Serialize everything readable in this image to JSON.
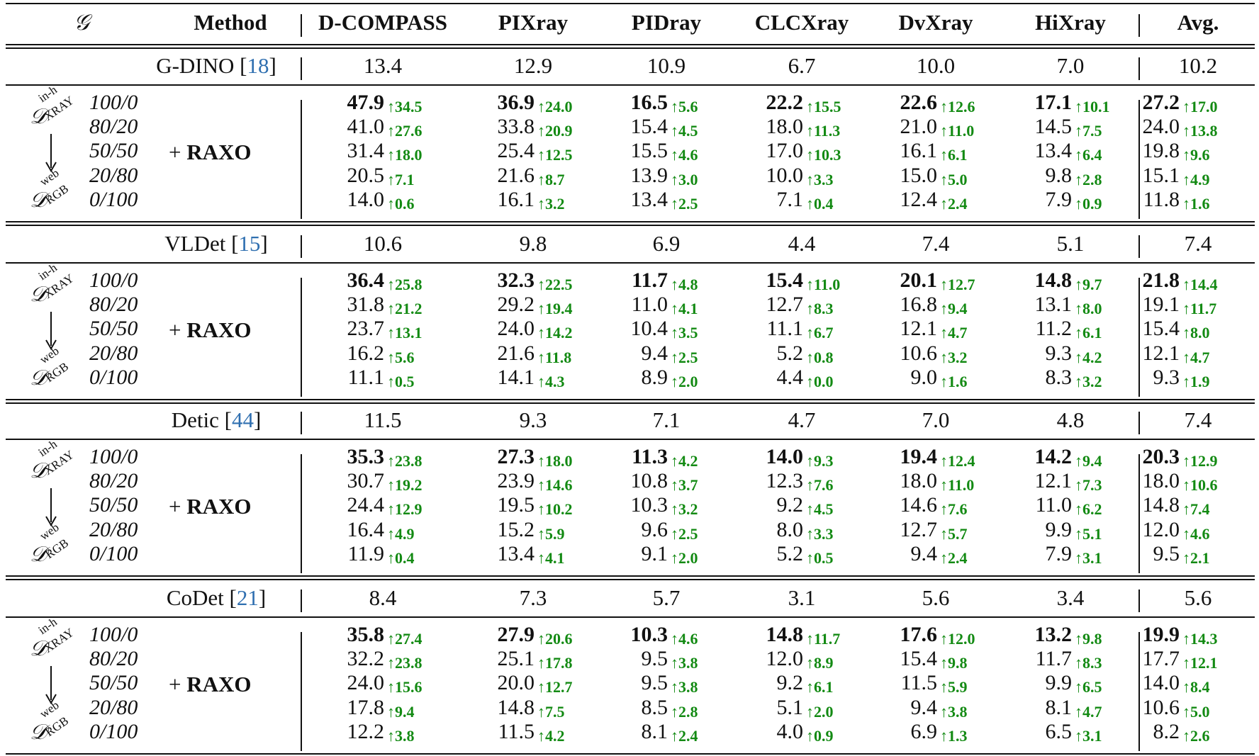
{
  "header": {
    "g_symbol": "𝒢",
    "method": "Method",
    "columns": [
      "D-COMPASS",
      "PIXray",
      "PIDray",
      "CLCXray",
      "DvXray",
      "HiXray"
    ],
    "avg": "Avg."
  },
  "domain_labels": {
    "source_symbol": "𝒟",
    "source_sup": "in-h",
    "source_sub": "XRAY",
    "target_symbol": "𝒟",
    "target_sup": "web",
    "target_sub": "RGB"
  },
  "blocks": [
    {
      "baseline": {
        "name": "G-DINO [",
        "ref": "18",
        "close": "]",
        "values": [
          "13.4",
          "12.9",
          "10.9",
          "6.7",
          "10.0",
          "7.0"
        ],
        "avg": "10.2"
      },
      "method_label_plus": "+ ",
      "method_label": "RAXO",
      "rows": [
        {
          "split": "100/0",
          "values": [
            "47.9",
            "36.9",
            "16.5",
            "22.2",
            "22.6",
            "17.1"
          ],
          "deltas": [
            "↑34.5",
            "↑24.0",
            "↑5.6",
            "↑15.5",
            "↑12.6",
            "↑10.1"
          ],
          "avg": "27.2",
          "avg_delta": "↑17.0",
          "bold": true
        },
        {
          "split": "80/20",
          "values": [
            "41.0",
            "33.8",
            "15.4",
            "18.0",
            "21.0",
            "14.5"
          ],
          "deltas": [
            "↑27.6",
            "↑20.9",
            "↑4.5",
            "↑11.3",
            "↑11.0",
            "↑7.5"
          ],
          "avg": "24.0",
          "avg_delta": "↑13.8",
          "bold": false
        },
        {
          "split": "50/50",
          "values": [
            "31.4",
            "25.4",
            "15.5",
            "17.0",
            "16.1",
            "13.4"
          ],
          "deltas": [
            "↑18.0",
            "↑12.5",
            "↑4.6",
            "↑10.3",
            "↑6.1",
            "↑6.4"
          ],
          "avg": "19.8",
          "avg_delta": "↑9.6",
          "bold": false
        },
        {
          "split": "20/80",
          "values": [
            "20.5",
            "21.6",
            "13.9",
            "10.0",
            "15.0",
            "9.8"
          ],
          "deltas": [
            "↑7.1",
            "↑8.7",
            "↑3.0",
            "↑3.3",
            "↑5.0",
            "↑2.8"
          ],
          "avg": "15.1",
          "avg_delta": "↑4.9",
          "bold": false
        },
        {
          "split": "0/100",
          "values": [
            "14.0",
            "16.1",
            "13.4",
            "7.1",
            "12.4",
            "7.9"
          ],
          "deltas": [
            "↑0.6",
            "↑3.2",
            "↑2.5",
            "↑0.4",
            "↑2.4",
            "↑0.9"
          ],
          "avg": "11.8",
          "avg_delta": "↑1.6",
          "bold": false
        }
      ]
    },
    {
      "baseline": {
        "name": "VLDet [",
        "ref": "15",
        "close": "]",
        "values": [
          "10.6",
          "9.8",
          "6.9",
          "4.4",
          "7.4",
          "5.1"
        ],
        "avg": "7.4"
      },
      "method_label_plus": "+ ",
      "method_label": "RAXO",
      "rows": [
        {
          "split": "100/0",
          "values": [
            "36.4",
            "32.3",
            "11.7",
            "15.4",
            "20.1",
            "14.8"
          ],
          "deltas": [
            "↑25.8",
            "↑22.5",
            "↑4.8",
            "↑11.0",
            "↑12.7",
            "↑9.7"
          ],
          "avg": "21.8",
          "avg_delta": "↑14.4",
          "bold": true
        },
        {
          "split": "80/20",
          "values": [
            "31.8",
            "29.2",
            "11.0",
            "12.7",
            "16.8",
            "13.1"
          ],
          "deltas": [
            "↑21.2",
            "↑19.4",
            "↑4.1",
            "↑8.3",
            "↑9.4",
            "↑8.0"
          ],
          "avg": "19.1",
          "avg_delta": "↑11.7",
          "bold": false
        },
        {
          "split": "50/50",
          "values": [
            "23.7",
            "24.0",
            "10.4",
            "11.1",
            "12.1",
            "11.2"
          ],
          "deltas": [
            "↑13.1",
            "↑14.2",
            "↑3.5",
            "↑6.7",
            "↑4.7",
            "↑6.1"
          ],
          "avg": "15.4",
          "avg_delta": "↑8.0",
          "bold": false
        },
        {
          "split": "20/80",
          "values": [
            "16.2",
            "21.6",
            "9.4",
            "5.2",
            "10.6",
            "9.3"
          ],
          "deltas": [
            "↑5.6",
            "↑11.8",
            "↑2.5",
            "↑0.8",
            "↑3.2",
            "↑4.2"
          ],
          "avg": "12.1",
          "avg_delta": "↑4.7",
          "bold": false
        },
        {
          "split": "0/100",
          "values": [
            "11.1",
            "14.1",
            "8.9",
            "4.4",
            "9.0",
            "8.3"
          ],
          "deltas": [
            "↑0.5",
            "↑4.3",
            "↑2.0",
            "↑0.0",
            "↑1.6",
            "↑3.2"
          ],
          "avg": "9.3",
          "avg_delta": "↑1.9",
          "bold": false
        }
      ]
    },
    {
      "baseline": {
        "name": "Detic [",
        "ref": "44",
        "close": "]",
        "values": [
          "11.5",
          "9.3",
          "7.1",
          "4.7",
          "7.0",
          "4.8"
        ],
        "avg": "7.4"
      },
      "method_label_plus": "+ ",
      "method_label": "RAXO",
      "rows": [
        {
          "split": "100/0",
          "values": [
            "35.3",
            "27.3",
            "11.3",
            "14.0",
            "19.4",
            "14.2"
          ],
          "deltas": [
            "↑23.8",
            "↑18.0",
            "↑4.2",
            "↑9.3",
            "↑12.4",
            "↑9.4"
          ],
          "avg": "20.3",
          "avg_delta": "↑12.9",
          "bold": true
        },
        {
          "split": "80/20",
          "values": [
            "30.7",
            "23.9",
            "10.8",
            "12.3",
            "18.0",
            "12.1"
          ],
          "deltas": [
            "↑19.2",
            "↑14.6",
            "↑3.7",
            "↑7.6",
            "↑11.0",
            "↑7.3"
          ],
          "avg": "18.0",
          "avg_delta": "↑10.6",
          "bold": false
        },
        {
          "split": "50/50",
          "values": [
            "24.4",
            "19.5",
            "10.3",
            "9.2",
            "14.6",
            "11.0"
          ],
          "deltas": [
            "↑12.9",
            "↑10.2",
            "↑3.2",
            "↑4.5",
            "↑7.6",
            "↑6.2"
          ],
          "avg": "14.8",
          "avg_delta": "↑7.4",
          "bold": false
        },
        {
          "split": "20/80",
          "values": [
            "16.4",
            "15.2",
            "9.6",
            "8.0",
            "12.7",
            "9.9"
          ],
          "deltas": [
            "↑4.9",
            "↑5.9",
            "↑2.5",
            "↑3.3",
            "↑5.7",
            "↑5.1"
          ],
          "avg": "12.0",
          "avg_delta": "↑4.6",
          "bold": false
        },
        {
          "split": "0/100",
          "values": [
            "11.9",
            "13.4",
            "9.1",
            "5.2",
            "9.4",
            "7.9"
          ],
          "deltas": [
            "↑0.4",
            "↑4.1",
            "↑2.0",
            "↑0.5",
            "↑2.4",
            "↑3.1"
          ],
          "avg": "9.5",
          "avg_delta": "↑2.1",
          "bold": false
        }
      ]
    },
    {
      "baseline": {
        "name": "CoDet [",
        "ref": "21",
        "close": "]",
        "values": [
          "8.4",
          "7.3",
          "5.7",
          "3.1",
          "5.6",
          "3.4"
        ],
        "avg": "5.6"
      },
      "method_label_plus": "+ ",
      "method_label": "RAXO",
      "rows": [
        {
          "split": "100/0",
          "values": [
            "35.8",
            "27.9",
            "10.3",
            "14.8",
            "17.6",
            "13.2"
          ],
          "deltas": [
            "↑27.4",
            "↑20.6",
            "↑4.6",
            "↑11.7",
            "↑12.0",
            "↑9.8"
          ],
          "avg": "19.9",
          "avg_delta": "↑14.3",
          "bold": true
        },
        {
          "split": "80/20",
          "values": [
            "32.2",
            "25.1",
            "9.5",
            "12.0",
            "15.4",
            "11.7"
          ],
          "deltas": [
            "↑23.8",
            "↑17.8",
            "↑3.8",
            "↑8.9",
            "↑9.8",
            "↑8.3"
          ],
          "avg": "17.7",
          "avg_delta": "↑12.1",
          "bold": false
        },
        {
          "split": "50/50",
          "values": [
            "24.0",
            "20.0",
            "9.5",
            "9.2",
            "11.5",
            "9.9"
          ],
          "deltas": [
            "↑15.6",
            "↑12.7",
            "↑3.8",
            "↑6.1",
            "↑5.9",
            "↑6.5"
          ],
          "avg": "14.0",
          "avg_delta": "↑8.4",
          "bold": false
        },
        {
          "split": "20/80",
          "values": [
            "17.8",
            "14.8",
            "8.5",
            "5.1",
            "9.4",
            "8.1"
          ],
          "deltas": [
            "↑9.4",
            "↑7.5",
            "↑2.8",
            "↑2.0",
            "↑3.8",
            "↑4.7"
          ],
          "avg": "10.6",
          "avg_delta": "↑5.0",
          "bold": false
        },
        {
          "split": "0/100",
          "values": [
            "12.2",
            "11.5",
            "8.1",
            "4.0",
            "6.9",
            "6.5"
          ],
          "deltas": [
            "↑3.8",
            "↑4.2",
            "↑2.4",
            "↑0.9",
            "↑1.3",
            "↑3.1"
          ],
          "avg": "8.2",
          "avg_delta": "↑2.6",
          "bold": false
        }
      ]
    }
  ],
  "colors": {
    "delta_green": "#138a13",
    "citation_blue": "#2f6fb0",
    "rule": "#111111"
  }
}
